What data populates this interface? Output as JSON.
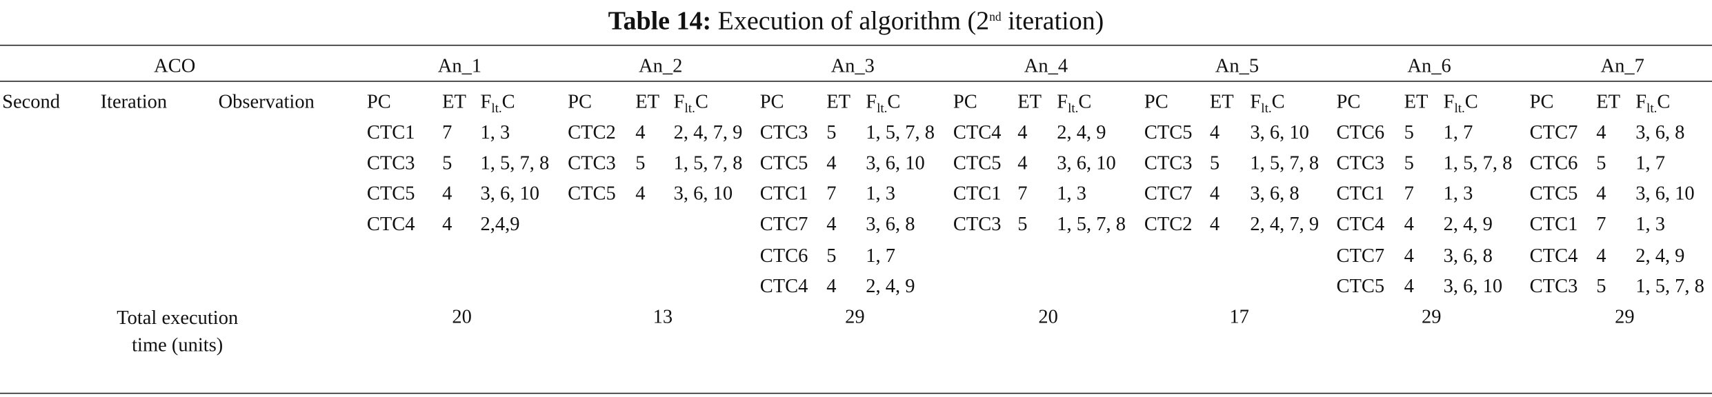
{
  "title": {
    "label": "Table 14:",
    "text": "Execution of algorithm (2",
    "sup": "nd",
    "text_after": "iteration)"
  },
  "header": {
    "aco": "ACO",
    "ants": [
      "An_1",
      "An_2",
      "An_3",
      "An_4",
      "An_5",
      "An_6",
      "An_7"
    ]
  },
  "sub_header": {
    "second": "Second",
    "iteration": "Iteration",
    "observation": "Observation",
    "pc": "PC",
    "et": "ET",
    "flt_main": "F",
    "flt_sub": "lt.",
    "flt_after": "C"
  },
  "ants": [
    [
      [
        "CTC1",
        "7",
        "1, 3"
      ],
      [
        "CTC3",
        "5",
        "1, 5, 7, 8"
      ],
      [
        "CTC5",
        "4",
        "3, 6, 10"
      ],
      [
        "CTC4",
        "4",
        "2,4,9"
      ]
    ],
    [
      [
        "CTC2",
        "4",
        "2, 4, 7, 9"
      ],
      [
        "CTC3",
        "5",
        "1, 5, 7, 8"
      ],
      [
        "CTC5",
        "4",
        "3, 6, 10"
      ]
    ],
    [
      [
        "CTC3",
        "5",
        "1, 5, 7, 8"
      ],
      [
        "CTC5",
        "4",
        "3, 6, 10"
      ],
      [
        "CTC1",
        "7",
        "1, 3"
      ],
      [
        "CTC7",
        "4",
        "3, 6, 8"
      ],
      [
        "CTC6",
        "5",
        "1, 7"
      ],
      [
        "CTC4",
        "4",
        "2, 4, 9"
      ]
    ],
    [
      [
        "CTC4",
        "4",
        "2, 4, 9"
      ],
      [
        "CTC5",
        "4",
        "3, 6, 10"
      ],
      [
        "CTC1",
        "7",
        "1, 3"
      ],
      [
        "CTC3",
        "5",
        "1, 5, 7, 8"
      ]
    ],
    [
      [
        "CTC5",
        "4",
        "3, 6, 10"
      ],
      [
        "CTC3",
        "5",
        "1, 5, 7, 8"
      ],
      [
        "CTC7",
        "4",
        "3, 6, 8"
      ],
      [
        "CTC2",
        "4",
        "2, 4, 7, 9"
      ]
    ],
    [
      [
        "CTC6",
        "5",
        "1, 7"
      ],
      [
        "CTC3",
        "5",
        "1, 5, 7, 8"
      ],
      [
        "CTC1",
        "7",
        "1, 3"
      ],
      [
        "CTC4",
        "4",
        "2, 4, 9"
      ],
      [
        "CTC7",
        "4",
        "3, 6, 8"
      ],
      [
        "CTC5",
        "4",
        "3, 6, 10"
      ]
    ],
    [
      [
        "CTC7",
        "4",
        "3, 6, 8"
      ],
      [
        "CTC6",
        "5",
        "1, 7"
      ],
      [
        "CTC5",
        "4",
        "3, 6, 10"
      ],
      [
        "CTC1",
        "7",
        "1, 3"
      ],
      [
        "CTC4",
        "4",
        "2, 4, 9"
      ],
      [
        "CTC3",
        "5",
        "1, 5, 7, 8"
      ]
    ]
  ],
  "total": {
    "label": "Total execution time (units)",
    "values": [
      "20",
      "13",
      "29",
      "20",
      "17",
      "29",
      "29"
    ]
  }
}
